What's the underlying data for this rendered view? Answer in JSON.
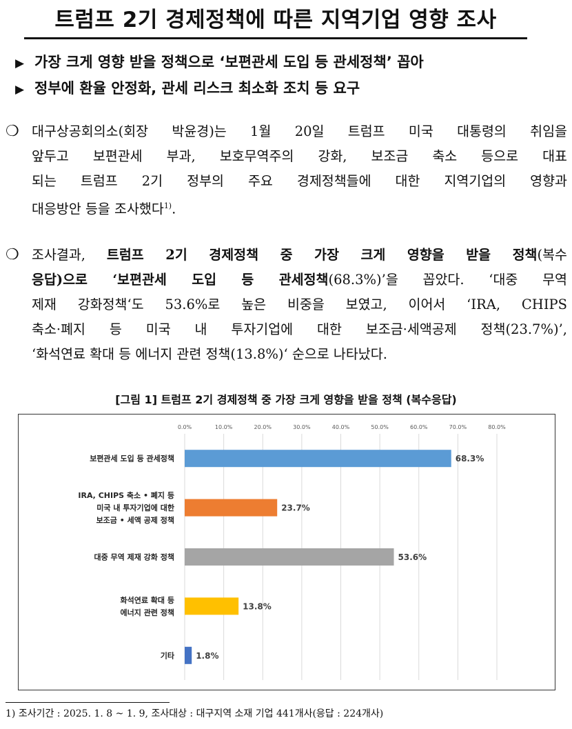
{
  "title": "트럼프 2기 경제정책에 따른 지역기업 영향 조사",
  "summary": [
    "가장 크게 영향 받을 정책으로 ‘보편관세 도입 등 관세정책’ 꼽아",
    "정부에 환율 안정화, 관세 리스크 최소화 조치 등 요구"
  ],
  "paragraph1": {
    "lines": [
      "대구상공회의소(회장 박윤경)는 1월 20일 트럼프 미국 대통령의 취임을",
      "앞두고 보편관세 부과, 보호무역주의 강화, 보조금 축소 등으로 대표",
      "되는 트럼프 2기 정부의 주요 경제정책들에 대한 지역기업의 영향과",
      "대응방안 등을 조사했다"
    ],
    "footnote_ref": "1)",
    "end": "."
  },
  "paragraph2": {
    "l1_a": "조사결과, ",
    "l1_b": "트럼프 2기 경제정책 중 가장 크게 영향을 받을 정책",
    "l1_c": "(복수",
    "l2_a": "응답)으로 ‘보편관세 도입 등 관세정책",
    "l2_b": "(68.3%)’을 꼽았다. ‘대중 무역",
    "l3": "제재 강화정책‘도 53.6%로 높은 비중을 보였고, 이어서 ‘IRA, CHIPS",
    "l4": "축소·폐지 등 미국 내 투자기업에 대한 보조금·세액공제 정책(23.7%)’,",
    "l5": "‘화석연료 확대 등 에너지 관련 정책(13.8%)‘ 순으로 나타났다."
  },
  "figure_caption": "[그림 1] 트럼프 2기 경제정책 중 가장 크게 영향을 받을 정책 (복수응답)",
  "chart_data": {
    "type": "bar",
    "orientation": "horizontal",
    "categories": [
      [
        "보편관세 도입 등 관세정책"
      ],
      [
        "IRA, CHIPS 축소 • 폐지 등",
        "미국 내 투자기업에 대한",
        "보조금 • 세액 공제 정책"
      ],
      [
        "대중 무역 제재 강화 정책"
      ],
      [
        "화석연료 확대 등",
        "에너지 관련 정책"
      ],
      [
        "기타"
      ]
    ],
    "values": [
      68.3,
      23.7,
      53.6,
      13.8,
      1.8
    ],
    "value_labels": [
      "68.3%",
      "23.7%",
      "53.6%",
      "13.8%",
      "1.8%"
    ],
    "colors": [
      "#5b9bd5",
      "#ed7d31",
      "#a5a5a5",
      "#ffc000",
      "#4472c4"
    ],
    "xlim": [
      0,
      80
    ],
    "x_ticks": [
      "0.0%",
      "10.0%",
      "20.0%",
      "30.0%",
      "40.0%",
      "50.0%",
      "60.0%",
      "70.0%",
      "80.0%"
    ],
    "x_tick_values": [
      0,
      10,
      20,
      30,
      40,
      50,
      60,
      70,
      80
    ],
    "axis_position": "top",
    "grid": true
  },
  "footnote": "1) 조사기간 : 2025. 1. 8 ~ 1. 9, 조사대상 : 대구지역 소재 기업 441개사(응답 : 224개사)",
  "icons": {
    "bullet": "triangle-bullet-icon",
    "paragraph": "circle-bullet-icon"
  }
}
